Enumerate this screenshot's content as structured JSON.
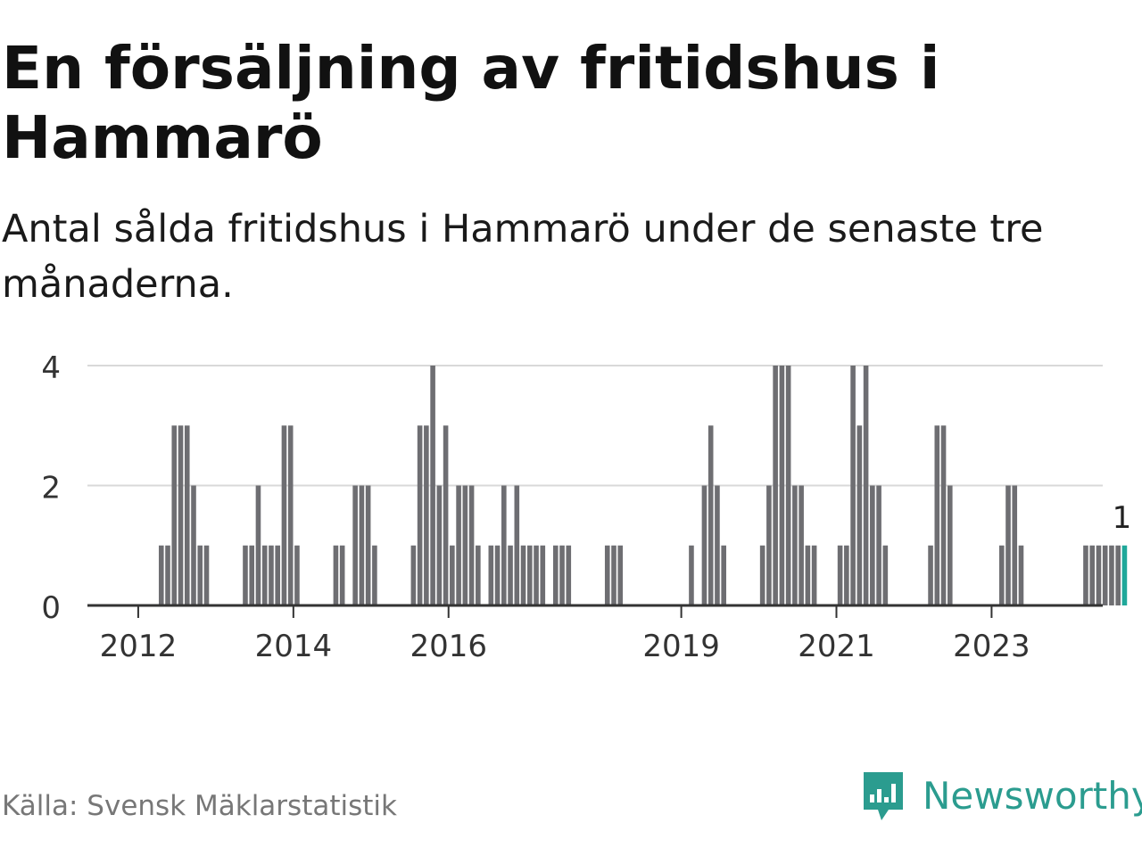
{
  "title": "En försäljning av fritidshus i Hammarö",
  "subtitle": "Antal sålda fritidshus i Hammarö under de senaste tre månaderna.",
  "source": "Källa: Svensk Mäklarstatistik",
  "brand": {
    "name": "Newsworthy",
    "icon": "newsworthy-logo-icon",
    "color": "#2b9c8f"
  },
  "chart_data": {
    "type": "bar",
    "x_start": "2011-10",
    "x_unit": "month",
    "y_ticks": [
      0,
      2,
      4
    ],
    "ylim": [
      0,
      4
    ],
    "x_tick_labels": [
      "2012",
      "2014",
      "2016",
      "2019",
      "2021",
      "2023"
    ],
    "grid": true,
    "bar_color": "#6e6e72",
    "highlight_color": "#1fa89a",
    "highlight_label": "1",
    "values": [
      0,
      0,
      0,
      0,
      0,
      0,
      1,
      1,
      3,
      3,
      3,
      2,
      1,
      1,
      0,
      0,
      0,
      0,
      0,
      1,
      1,
      2,
      1,
      1,
      1,
      3,
      3,
      1,
      0,
      0,
      0,
      0,
      0,
      1,
      1,
      0,
      2,
      2,
      2,
      1,
      0,
      0,
      0,
      0,
      0,
      1,
      3,
      3,
      4,
      2,
      3,
      1,
      2,
      2,
      2,
      1,
      0,
      1,
      1,
      2,
      1,
      2,
      1,
      1,
      1,
      1,
      0,
      1,
      1,
      1,
      0,
      0,
      0,
      0,
      0,
      1,
      1,
      1,
      0,
      0,
      0,
      0,
      0,
      0,
      0,
      0,
      0,
      0,
      1,
      0,
      2,
      3,
      2,
      1,
      0,
      0,
      0,
      0,
      0,
      1,
      2,
      4,
      4,
      4,
      2,
      2,
      1,
      1,
      0,
      0,
      0,
      1,
      1,
      4,
      3,
      4,
      2,
      2,
      1,
      0,
      0,
      0,
      0,
      0,
      0,
      1,
      3,
      3,
      2,
      0,
      0,
      0,
      0,
      0,
      0,
      0,
      1,
      2,
      2,
      1,
      0,
      0,
      0,
      0,
      0,
      0,
      0,
      0,
      0,
      1,
      1,
      1,
      1,
      1,
      1,
      1
    ]
  }
}
